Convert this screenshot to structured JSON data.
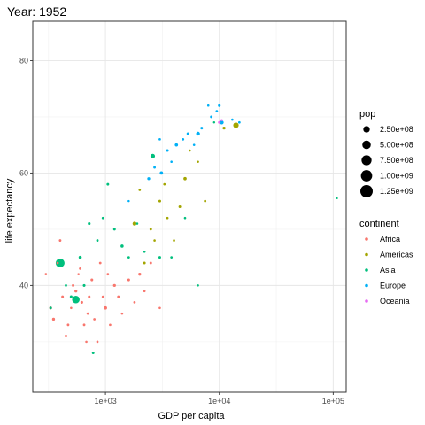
{
  "chart_data": {
    "type": "scatter",
    "title": "Year: 1952",
    "xlabel": "GDP per capita",
    "ylabel": "life expectancy",
    "x_scale": "log10",
    "xlim": [
      230,
      130000
    ],
    "ylim": [
      21,
      87
    ],
    "x_ticks": [
      1000,
      10000,
      100000
    ],
    "x_tick_labels": [
      "1e+03",
      "1e+04",
      "1e+05"
    ],
    "y_ticks": [
      40,
      60,
      80
    ],
    "y_tick_labels": [
      "40",
      "60",
      "80"
    ],
    "grid": true,
    "legend_position": "right",
    "size_legend": {
      "title": "pop",
      "entries": [
        {
          "label": "2.50e+08",
          "value": 250000000
        },
        {
          "label": "5.00e+08",
          "value": 500000000
        },
        {
          "label": "7.50e+08",
          "value": 750000000
        },
        {
          "label": "1.00e+09",
          "value": 1000000000
        },
        {
          "label": "1.25e+09",
          "value": 1250000000
        }
      ]
    },
    "color_legend": {
      "title": "continent",
      "entries": [
        {
          "label": "Africa",
          "color": "#F8766D"
        },
        {
          "label": "Americas",
          "color": "#A3A500"
        },
        {
          "label": "Asia",
          "color": "#00BF7D"
        },
        {
          "label": "Europe",
          "color": "#00B0F6"
        },
        {
          "label": "Oceania",
          "color": "#E76BF3"
        }
      ]
    },
    "series": [
      {
        "name": "Africa",
        "color": "#F8766D",
        "points": [
          {
            "x": 300,
            "y": 42,
            "pop": 5000000
          },
          {
            "x": 330,
            "y": 36,
            "pop": 12000000
          },
          {
            "x": 350,
            "y": 34,
            "pop": 15000000
          },
          {
            "x": 380,
            "y": 44,
            "pop": 4000000
          },
          {
            "x": 400,
            "y": 48,
            "pop": 6000000
          },
          {
            "x": 420,
            "y": 38,
            "pop": 8000000
          },
          {
            "x": 450,
            "y": 31,
            "pop": 9000000
          },
          {
            "x": 470,
            "y": 33,
            "pop": 6000000
          },
          {
            "x": 500,
            "y": 36,
            "pop": 3000000
          },
          {
            "x": 520,
            "y": 40,
            "pop": 7000000
          },
          {
            "x": 550,
            "y": 39,
            "pop": 14000000
          },
          {
            "x": 580,
            "y": 42,
            "pop": 4000000
          },
          {
            "x": 600,
            "y": 43,
            "pop": 5000000
          },
          {
            "x": 620,
            "y": 37,
            "pop": 10000000
          },
          {
            "x": 650,
            "y": 33,
            "pop": 6000000
          },
          {
            "x": 680,
            "y": 30,
            "pop": 3000000
          },
          {
            "x": 700,
            "y": 35,
            "pop": 5000000
          },
          {
            "x": 720,
            "y": 38,
            "pop": 8000000
          },
          {
            "x": 760,
            "y": 41,
            "pop": 10000000
          },
          {
            "x": 800,
            "y": 34,
            "pop": 5000000
          },
          {
            "x": 850,
            "y": 30,
            "pop": 4000000
          },
          {
            "x": 900,
            "y": 44,
            "pop": 6000000
          },
          {
            "x": 950,
            "y": 38,
            "pop": 5000000
          },
          {
            "x": 1000,
            "y": 36,
            "pop": 25000000
          },
          {
            "x": 1050,
            "y": 42,
            "pop": 8000000
          },
          {
            "x": 1100,
            "y": 33,
            "pop": 4000000
          },
          {
            "x": 1200,
            "y": 40,
            "pop": 14000000
          },
          {
            "x": 1300,
            "y": 38,
            "pop": 7000000
          },
          {
            "x": 1400,
            "y": 35,
            "pop": 3000000
          },
          {
            "x": 1600,
            "y": 41,
            "pop": 10000000
          },
          {
            "x": 1800,
            "y": 37,
            "pop": 5000000
          },
          {
            "x": 2000,
            "y": 42,
            "pop": 18000000
          },
          {
            "x": 2200,
            "y": 39,
            "pop": 4000000
          },
          {
            "x": 2500,
            "y": 44,
            "pop": 7000000
          },
          {
            "x": 3000,
            "y": 36,
            "pop": 3000000
          }
        ]
      },
      {
        "name": "Americas",
        "color": "#A3A500",
        "points": [
          {
            "x": 1800,
            "y": 51,
            "pop": 50000000
          },
          {
            "x": 2000,
            "y": 57,
            "pop": 4000000
          },
          {
            "x": 2200,
            "y": 44,
            "pop": 8000000
          },
          {
            "x": 2500,
            "y": 50,
            "pop": 6000000
          },
          {
            "x": 2700,
            "y": 48,
            "pop": 3000000
          },
          {
            "x": 3000,
            "y": 55,
            "pop": 9000000
          },
          {
            "x": 3300,
            "y": 58,
            "pop": 5000000
          },
          {
            "x": 3500,
            "y": 52,
            "pop": 4000000
          },
          {
            "x": 4000,
            "y": 48,
            "pop": 3000000
          },
          {
            "x": 4500,
            "y": 54,
            "pop": 8000000
          },
          {
            "x": 5000,
            "y": 59,
            "pop": 25000000
          },
          {
            "x": 5500,
            "y": 64,
            "pop": 3000000
          },
          {
            "x": 6500,
            "y": 62,
            "pop": 2000000
          },
          {
            "x": 7500,
            "y": 55,
            "pop": 5000000
          },
          {
            "x": 11000,
            "y": 68,
            "pop": 15000000
          },
          {
            "x": 14000,
            "y": 68.5,
            "pop": 150000000
          }
        ]
      },
      {
        "name": "Asia",
        "color": "#00BF7D",
        "points": [
          {
            "x": 330,
            "y": 36,
            "pop": 8000000
          },
          {
            "x": 400,
            "y": 44,
            "pop": 560000000
          },
          {
            "x": 450,
            "y": 40,
            "pop": 5000000
          },
          {
            "x": 500,
            "y": 38,
            "pop": 10000000
          },
          {
            "x": 550,
            "y": 37.5,
            "pop": 370000000
          },
          {
            "x": 600,
            "y": 45,
            "pop": 20000000
          },
          {
            "x": 650,
            "y": 40,
            "pop": 10000000
          },
          {
            "x": 720,
            "y": 51,
            "pop": 12000000
          },
          {
            "x": 780,
            "y": 28,
            "pop": 8000000
          },
          {
            "x": 850,
            "y": 48,
            "pop": 6000000
          },
          {
            "x": 950,
            "y": 52,
            "pop": 5000000
          },
          {
            "x": 1050,
            "y": 58,
            "pop": 8000000
          },
          {
            "x": 1200,
            "y": 50,
            "pop": 9000000
          },
          {
            "x": 1400,
            "y": 47,
            "pop": 20000000
          },
          {
            "x": 1600,
            "y": 45,
            "pop": 5000000
          },
          {
            "x": 1900,
            "y": 51,
            "pop": 3000000
          },
          {
            "x": 2200,
            "y": 46,
            "pop": 4000000
          },
          {
            "x": 2600,
            "y": 63,
            "pop": 86000000
          },
          {
            "x": 3000,
            "y": 45,
            "pop": 8000000
          },
          {
            "x": 3800,
            "y": 45,
            "pop": 5000000
          },
          {
            "x": 5000,
            "y": 52,
            "pop": 3000000
          },
          {
            "x": 6500,
            "y": 40,
            "pop": 2000000
          },
          {
            "x": 9000,
            "y": 69,
            "pop": 2000000
          },
          {
            "x": 108000,
            "y": 55.5,
            "pop": 200000
          }
        ]
      },
      {
        "name": "Europe",
        "color": "#00B0F6",
        "points": [
          {
            "x": 1600,
            "y": 55,
            "pop": 2000000
          },
          {
            "x": 2400,
            "y": 59,
            "pop": 16000000
          },
          {
            "x": 2700,
            "y": 61,
            "pop": 7000000
          },
          {
            "x": 3000,
            "y": 66,
            "pop": 4000000
          },
          {
            "x": 3100,
            "y": 60,
            "pop": 28000000
          },
          {
            "x": 3500,
            "y": 64,
            "pop": 9000000
          },
          {
            "x": 3800,
            "y": 62,
            "pop": 3000000
          },
          {
            "x": 4200,
            "y": 65,
            "pop": 25000000
          },
          {
            "x": 4800,
            "y": 66,
            "pop": 5000000
          },
          {
            "x": 5300,
            "y": 67,
            "pop": 9000000
          },
          {
            "x": 6000,
            "y": 65,
            "pop": 3000000
          },
          {
            "x": 6500,
            "y": 67,
            "pop": 47000000
          },
          {
            "x": 7000,
            "y": 68,
            "pop": 10000000
          },
          {
            "x": 8000,
            "y": 72,
            "pop": 3000000
          },
          {
            "x": 8500,
            "y": 70,
            "pop": 7000000
          },
          {
            "x": 9500,
            "y": 71,
            "pop": 5000000
          },
          {
            "x": 10000,
            "y": 72,
            "pop": 10000000
          },
          {
            "x": 10500,
            "y": 69,
            "pop": 50000000
          },
          {
            "x": 13000,
            "y": 69.5,
            "pop": 3000000
          },
          {
            "x": 15000,
            "y": 69,
            "pop": 5000000
          }
        ]
      },
      {
        "name": "Oceania",
        "color": "#E76BF3",
        "points": [
          {
            "x": 10000,
            "y": 69,
            "pop": 9000000
          },
          {
            "x": 10500,
            "y": 69.4,
            "pop": 2000000
          }
        ]
      }
    ]
  }
}
